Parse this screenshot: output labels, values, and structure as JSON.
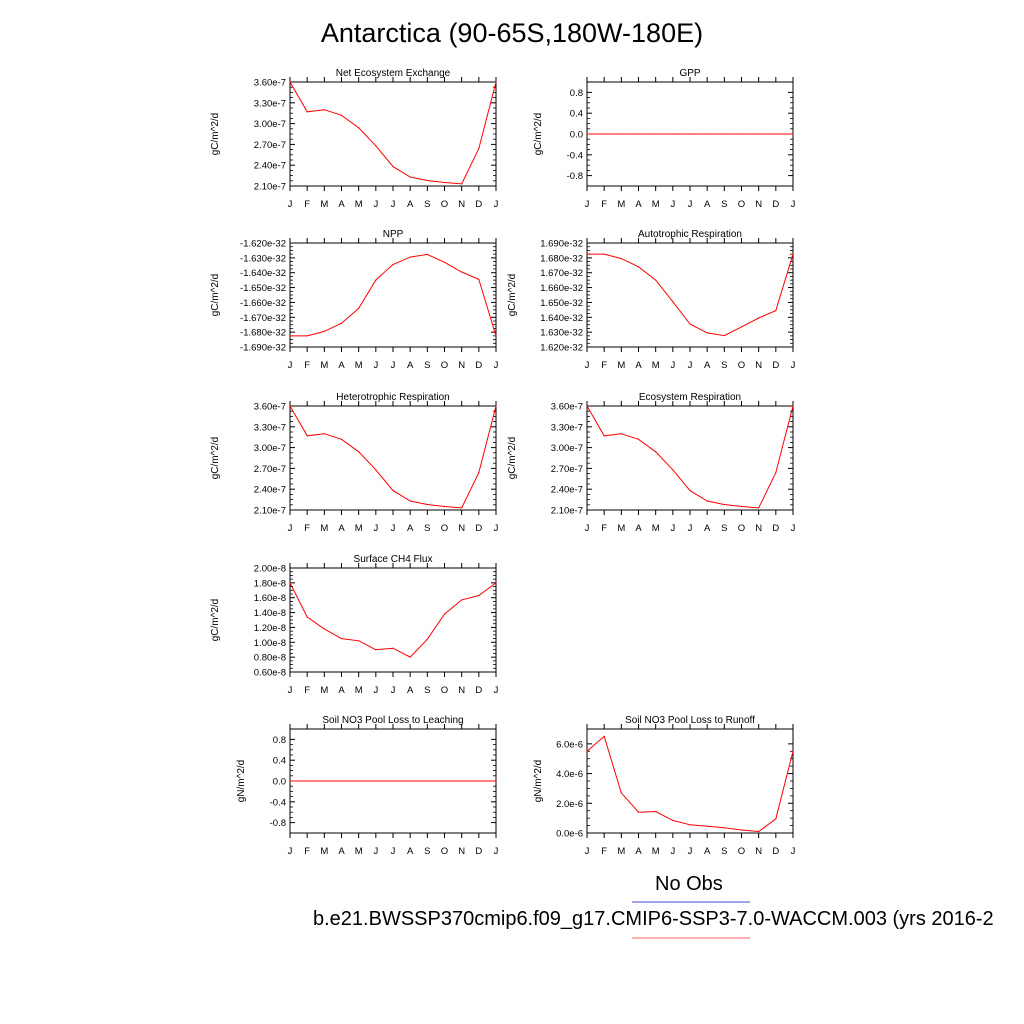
{
  "page": {
    "title": "Antarctica (90-65S,180W-180E)"
  },
  "legend": [
    {
      "label": "No Obs",
      "color": "#6b6bdb"
    },
    {
      "label": "b.e21.BWSSP370cmip6.f09_g17.CMIP6-SSP3-7.0-WACCM.003 (yrs 2016-2",
      "color": "#ff8080"
    }
  ],
  "chart_data": [
    {
      "type": "line",
      "title": "Net Ecosystem Exchange",
      "ylabel": "gC/m^2/d",
      "categories": [
        "J",
        "F",
        "M",
        "A",
        "M",
        "J",
        "J",
        "A",
        "S",
        "O",
        "N",
        "D",
        "J"
      ],
      "ylim": [
        2.1e-07,
        3.6e-07
      ],
      "yticks": [
        2.1e-07,
        2.4e-07,
        2.7e-07,
        3e-07,
        3.3e-07,
        3.6e-07
      ],
      "yticklabels": [
        "2.10e-7",
        "2.40e-7",
        "2.70e-7",
        "3.00e-7",
        "3.30e-7",
        "3.60e-7"
      ],
      "series": [
        {
          "color": "#ff0000",
          "values": [
            3.6e-07,
            3.17e-07,
            3.2e-07,
            3.12e-07,
            2.94e-07,
            2.68e-07,
            2.38e-07,
            2.23e-07,
            2.18e-07,
            2.15e-07,
            2.13e-07,
            2.64e-07,
            3.6e-07
          ]
        }
      ]
    },
    {
      "type": "line",
      "title": "GPP",
      "ylabel": "gC/m^2/d",
      "categories": [
        "J",
        "F",
        "M",
        "A",
        "M",
        "J",
        "J",
        "A",
        "S",
        "O",
        "N",
        "D",
        "J"
      ],
      "ylim": [
        -1,
        1
      ],
      "yticks": [
        -0.8,
        -0.4,
        0.0,
        0.4,
        0.8
      ],
      "yticklabels": [
        "-0.8",
        "-0.4",
        "0.0",
        "0.4",
        "0.8"
      ],
      "series": [
        {
          "color": "#ff0000",
          "values": [
            0,
            0,
            0,
            0,
            0,
            0,
            0,
            0,
            0,
            0,
            0,
            0,
            0
          ]
        }
      ]
    },
    {
      "type": "line",
      "title": "NPP",
      "ylabel": "gC/m^2/d",
      "categories": [
        "J",
        "F",
        "M",
        "A",
        "M",
        "J",
        "J",
        "A",
        "S",
        "O",
        "N",
        "D",
        "J"
      ],
      "ylim": [
        -1.69e-32,
        -1.62e-32
      ],
      "yticks": [
        -1.69e-32,
        -1.68e-32,
        -1.67e-32,
        -1.66e-32,
        -1.65e-32,
        -1.64e-32,
        -1.63e-32,
        -1.62e-32
      ],
      "yticklabels": [
        "-1.690e-32",
        "-1.680e-32",
        "-1.670e-32",
        "-1.660e-32",
        "-1.650e-32",
        "-1.640e-32",
        "-1.630e-32",
        "-1.620e-32"
      ],
      "series": [
        {
          "color": "#ff0000",
          "values": [
            -1.6825e-32,
            -1.6825e-32,
            -1.6795e-32,
            -1.674e-32,
            -1.664e-32,
            -1.645e-32,
            -1.6345e-32,
            -1.6295e-32,
            -1.6277e-32,
            -1.633e-32,
            -1.6395e-32,
            -1.6445e-32,
            -1.6825e-32
          ]
        }
      ]
    },
    {
      "type": "line",
      "title": "Autotrophic Respiration",
      "ylabel": "gC/m^2/d",
      "categories": [
        "J",
        "F",
        "M",
        "A",
        "M",
        "J",
        "J",
        "A",
        "S",
        "O",
        "N",
        "D",
        "J"
      ],
      "ylim": [
        1.62e-32,
        1.69e-32
      ],
      "yticks": [
        1.62e-32,
        1.63e-32,
        1.64e-32,
        1.65e-32,
        1.66e-32,
        1.67e-32,
        1.68e-32,
        1.69e-32
      ],
      "yticklabels": [
        "1.620e-32",
        "1.630e-32",
        "1.640e-32",
        "1.650e-32",
        "1.660e-32",
        "1.670e-32",
        "1.680e-32",
        "1.690e-32"
      ],
      "series": [
        {
          "color": "#ff0000",
          "values": [
            1.6825e-32,
            1.6825e-32,
            1.6795e-32,
            1.674e-32,
            1.665e-32,
            1.6505e-32,
            1.6355e-32,
            1.6295e-32,
            1.6277e-32,
            1.6335e-32,
            1.6395e-32,
            1.6445e-32,
            1.6825e-32
          ]
        }
      ]
    },
    {
      "type": "line",
      "title": "Heterotrophic Respiration",
      "ylabel": "gC/m^2/d",
      "categories": [
        "J",
        "F",
        "M",
        "A",
        "M",
        "J",
        "J",
        "A",
        "S",
        "O",
        "N",
        "D",
        "J"
      ],
      "ylim": [
        2.1e-07,
        3.6e-07
      ],
      "yticks": [
        2.1e-07,
        2.4e-07,
        2.7e-07,
        3e-07,
        3.3e-07,
        3.6e-07
      ],
      "yticklabels": [
        "2.10e-7",
        "2.40e-7",
        "2.70e-7",
        "3.00e-7",
        "3.30e-7",
        "3.60e-7"
      ],
      "series": [
        {
          "color": "#ff0000",
          "values": [
            3.6e-07,
            3.17e-07,
            3.2e-07,
            3.12e-07,
            2.94e-07,
            2.68e-07,
            2.38e-07,
            2.23e-07,
            2.18e-07,
            2.15e-07,
            2.13e-07,
            2.64e-07,
            3.6e-07
          ]
        }
      ]
    },
    {
      "type": "line",
      "title": "Ecosystem Respiration",
      "ylabel": "gC/m^2/d",
      "categories": [
        "J",
        "F",
        "M",
        "A",
        "M",
        "J",
        "J",
        "A",
        "S",
        "O",
        "N",
        "D",
        "J"
      ],
      "ylim": [
        2.1e-07,
        3.6e-07
      ],
      "yticks": [
        2.1e-07,
        2.4e-07,
        2.7e-07,
        3e-07,
        3.3e-07,
        3.6e-07
      ],
      "yticklabels": [
        "2.10e-7",
        "2.40e-7",
        "2.70e-7",
        "3.00e-7",
        "3.30e-7",
        "3.60e-7"
      ],
      "series": [
        {
          "color": "#ff0000",
          "values": [
            3.6e-07,
            3.17e-07,
            3.2e-07,
            3.12e-07,
            2.94e-07,
            2.68e-07,
            2.38e-07,
            2.23e-07,
            2.18e-07,
            2.15e-07,
            2.13e-07,
            2.64e-07,
            3.6e-07
          ]
        }
      ]
    },
    {
      "type": "line",
      "title": "Surface CH4 Flux",
      "ylabel": "gC/m^2/d",
      "categories": [
        "J",
        "F",
        "M",
        "A",
        "M",
        "J",
        "J",
        "A",
        "S",
        "O",
        "N",
        "D",
        "J"
      ],
      "ylim": [
        6e-09,
        2e-08
      ],
      "yticks": [
        6e-09,
        8e-09,
        1e-08,
        1.2e-08,
        1.4e-08,
        1.6e-08,
        1.8e-08,
        2e-08
      ],
      "yticklabels": [
        "0.60e-8",
        "0.80e-8",
        "1.00e-8",
        "1.20e-8",
        "1.40e-8",
        "1.60e-8",
        "1.80e-8",
        "2.00e-8"
      ],
      "series": [
        {
          "color": "#ff0000",
          "values": [
            1.8e-08,
            1.34e-08,
            1.18e-08,
            1.05e-08,
            1.02e-08,
            9e-09,
            9.2e-09,
            8e-09,
            1.04e-08,
            1.38e-08,
            1.57e-08,
            1.63e-08,
            1.8e-08
          ]
        }
      ]
    },
    {
      "type": "line",
      "title": "Soil NO3 Pool Loss to Leaching",
      "ylabel": "gN/m^2/d",
      "categories": [
        "J",
        "F",
        "M",
        "A",
        "M",
        "J",
        "J",
        "A",
        "S",
        "O",
        "N",
        "D",
        "J"
      ],
      "ylim": [
        -1,
        1
      ],
      "yticks": [
        -0.8,
        -0.4,
        0.0,
        0.4,
        0.8
      ],
      "yticklabels": [
        "-0.8",
        "-0.4",
        "0.0",
        "0.4",
        "0.8"
      ],
      "series": [
        {
          "color": "#ff0000",
          "values": [
            0,
            0,
            0,
            0,
            0,
            0,
            0,
            0,
            0,
            0,
            0,
            0,
            0
          ]
        }
      ]
    },
    {
      "type": "line",
      "title": "Soil NO3 Pool Loss to Runoff",
      "ylabel": "gN/m^2/d",
      "categories": [
        "J",
        "F",
        "M",
        "A",
        "M",
        "J",
        "J",
        "A",
        "S",
        "O",
        "N",
        "D",
        "J"
      ],
      "ylim": [
        0,
        7e-06
      ],
      "yticks": [
        0,
        2e-06,
        4e-06,
        6e-06
      ],
      "yticklabels": [
        "0.0e-6",
        "2.0e-6",
        "4.0e-6",
        "6.0e-6"
      ],
      "series": [
        {
          "color": "#ff0000",
          "values": [
            5.5e-06,
            6.5e-06,
            2.7e-06,
            1.4e-06,
            1.45e-06,
            8.5e-07,
            5.5e-07,
            4.5e-07,
            3.5e-07,
            2e-07,
            1e-07,
            9.5e-07,
            5.5e-06
          ]
        }
      ]
    }
  ]
}
